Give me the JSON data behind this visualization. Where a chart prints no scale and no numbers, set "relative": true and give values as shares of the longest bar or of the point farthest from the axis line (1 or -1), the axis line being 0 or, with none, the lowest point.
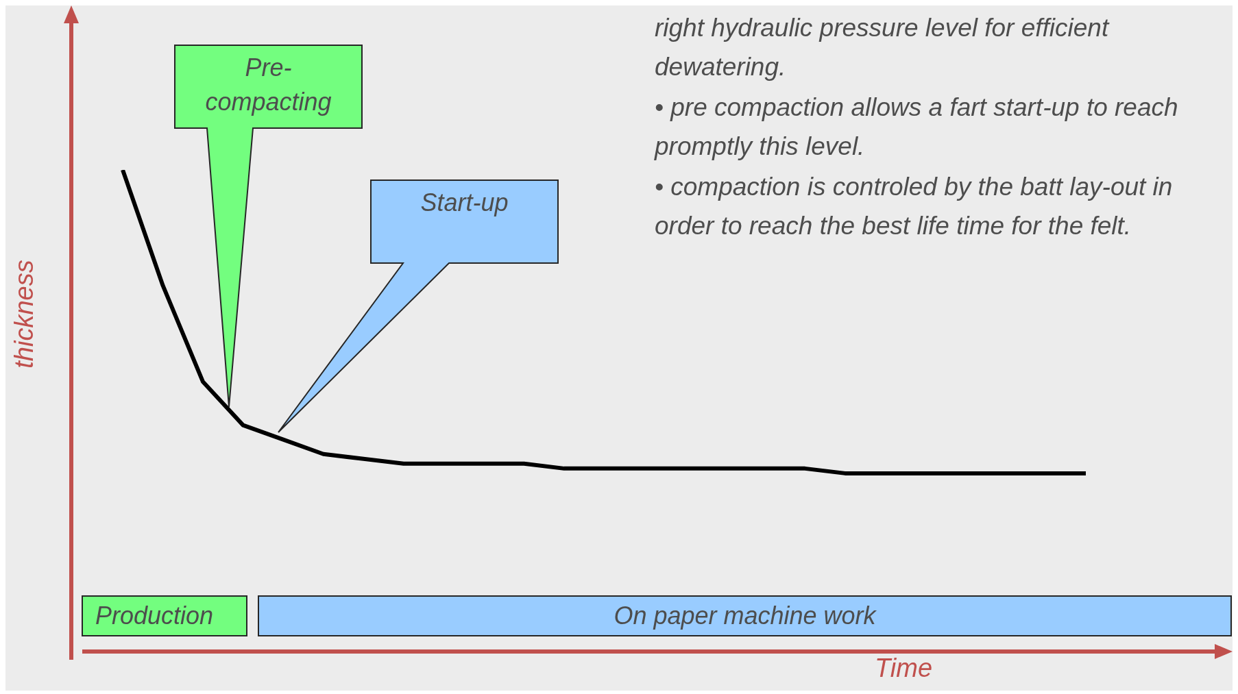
{
  "chart_data": {
    "type": "line",
    "relative": true,
    "xlabel": "Time",
    "ylabel": "thickness",
    "categories": [
      null,
      null,
      null,
      null,
      null,
      null,
      null,
      null,
      null,
      null,
      null,
      null,
      null,
      null,
      null,
      null,
      null,
      null,
      null,
      null,
      null,
      null,
      null,
      null,
      null
    ],
    "series": [
      {
        "color": "#000000",
        "values": [
          1.0,
          0.76,
          0.56,
          0.47,
          0.44,
          0.41,
          0.4,
          0.39,
          0.39,
          0.39,
          0.39,
          0.38,
          0.38,
          0.38,
          0.38,
          0.38,
          0.38,
          0.38,
          0.37,
          0.37,
          0.37,
          0.37,
          0.37,
          0.37,
          0.37
        ]
      }
    ],
    "annotations": [
      "right hydraulic pressure level for efficient dewatering.",
      "• pre compaction allows a fart start-up to reach promptly this level.",
      "• compaction is controled by the batt lay-out in order to reach the best life time for the felt.",
      "Pre-compacting",
      "Start-up",
      "Production",
      "On paper machine work"
    ]
  }
}
